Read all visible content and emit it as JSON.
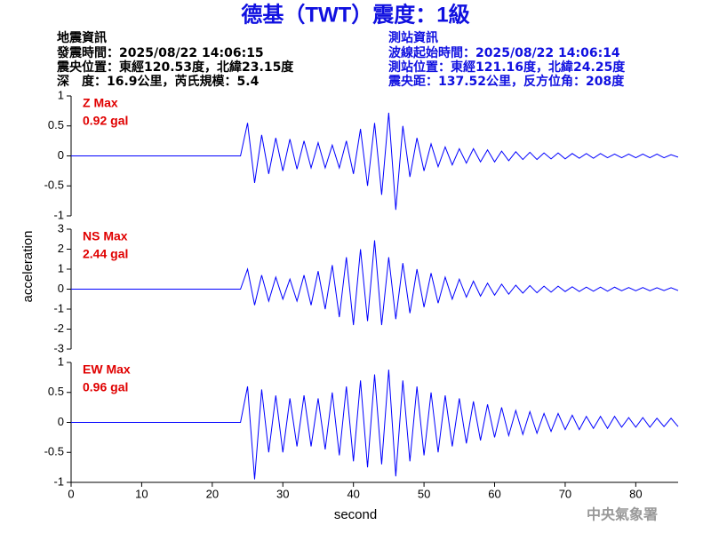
{
  "header": {
    "title": "德基（TWT）震度：1級",
    "left_info": [
      "地震資訊",
      "發震時間：2025/08/22 14:06:15",
      "震央位置：東經120.53度，北緯23.15度",
      "深　度：16.9公里，芮氏規模：5.4"
    ],
    "right_info": [
      "測站資訊",
      "波線起始時間：2025/08/22 14:06:14",
      "測站位置：東經121.16度，北緯24.25度",
      "震央距：137.52公里，反方位角：208度"
    ],
    "watermark": "中央氣象署"
  },
  "chart_data": [
    {
      "type": "line",
      "max_label": "Z Max",
      "max_value_label": "0.92 gal",
      "color": "#0000ff",
      "xlim": [
        0,
        86
      ],
      "ylim": [
        -1,
        1
      ],
      "yticks": [
        -1,
        -0.5,
        0,
        0.5,
        1
      ],
      "x": [
        0,
        1,
        2,
        3,
        4,
        5,
        6,
        7,
        8,
        9,
        10,
        11,
        12,
        13,
        14,
        15,
        16,
        17,
        18,
        19,
        20,
        21,
        22,
        23,
        24,
        25,
        26,
        27,
        28,
        29,
        30,
        31,
        32,
        33,
        34,
        35,
        36,
        37,
        38,
        39,
        40,
        41,
        42,
        43,
        44,
        45,
        46,
        47,
        48,
        49,
        50,
        51,
        52,
        53,
        54,
        55,
        56,
        57,
        58,
        59,
        60,
        61,
        62,
        63,
        64,
        65,
        66,
        67,
        68,
        69,
        70,
        71,
        72,
        73,
        74,
        75,
        76,
        77,
        78,
        79,
        80,
        81,
        82,
        83,
        84,
        85,
        86
      ],
      "values": [
        0,
        0,
        0,
        0,
        0,
        0,
        0,
        0,
        0,
        0,
        0,
        0,
        0,
        0,
        0,
        0,
        0,
        0,
        0,
        0,
        0,
        0,
        0,
        0,
        0,
        0.55,
        -0.45,
        0.35,
        -0.3,
        0.3,
        -0.25,
        0.28,
        -0.22,
        0.25,
        -0.2,
        0.22,
        -0.2,
        0.18,
        -0.2,
        0.25,
        -0.3,
        0.45,
        -0.5,
        0.55,
        -0.65,
        0.72,
        -0.9,
        0.5,
        -0.35,
        0.3,
        -0.25,
        0.2,
        -0.18,
        0.15,
        -0.15,
        0.12,
        -0.12,
        0.12,
        -0.1,
        0.1,
        -0.1,
        0.08,
        -0.08,
        0.07,
        -0.06,
        0.06,
        -0.06,
        0.05,
        -0.05,
        0.05,
        -0.05,
        0.04,
        -0.04,
        0.04,
        -0.04,
        0.04,
        -0.03,
        0.03,
        -0.03,
        0.03,
        -0.03,
        0.03,
        -0.03,
        0.03,
        -0.03,
        0.02,
        -0.02
      ]
    },
    {
      "type": "line",
      "max_label": "NS Max",
      "max_value_label": "2.44 gal",
      "color": "#0000ff",
      "ylabel": "acceleration",
      "xlim": [
        0,
        86
      ],
      "ylim": [
        -3,
        3
      ],
      "yticks": [
        -3,
        -2,
        -1,
        0,
        1,
        2,
        3
      ],
      "x": [
        0,
        1,
        2,
        3,
        4,
        5,
        6,
        7,
        8,
        9,
        10,
        11,
        12,
        13,
        14,
        15,
        16,
        17,
        18,
        19,
        20,
        21,
        22,
        23,
        24,
        25,
        26,
        27,
        28,
        29,
        30,
        31,
        32,
        33,
        34,
        35,
        36,
        37,
        38,
        39,
        40,
        41,
        42,
        43,
        44,
        45,
        46,
        47,
        48,
        49,
        50,
        51,
        52,
        53,
        54,
        55,
        56,
        57,
        58,
        59,
        60,
        61,
        62,
        63,
        64,
        65,
        66,
        67,
        68,
        69,
        70,
        71,
        72,
        73,
        74,
        75,
        76,
        77,
        78,
        79,
        80,
        81,
        82,
        83,
        84,
        85,
        86
      ],
      "values": [
        0,
        0,
        0,
        0,
        0,
        0,
        0,
        0,
        0,
        0,
        0,
        0,
        0,
        0,
        0,
        0,
        0,
        0,
        0,
        0,
        0,
        0,
        0,
        0,
        0,
        1.0,
        -0.8,
        0.7,
        -0.6,
        0.6,
        -0.5,
        0.5,
        -0.6,
        0.7,
        -0.8,
        0.9,
        -1.0,
        1.2,
        -1.4,
        1.6,
        -1.8,
        2.0,
        -1.6,
        2.44,
        -1.8,
        1.6,
        -1.5,
        1.3,
        -1.2,
        1.0,
        -0.9,
        0.8,
        -0.7,
        0.6,
        -0.5,
        0.5,
        -0.4,
        0.4,
        -0.35,
        0.3,
        -0.3,
        0.25,
        -0.25,
        0.2,
        -0.2,
        0.18,
        -0.18,
        0.15,
        -0.15,
        0.15,
        -0.12,
        0.12,
        -0.12,
        0.1,
        -0.1,
        0.1,
        -0.1,
        0.1,
        -0.08,
        0.08,
        -0.08,
        0.08,
        -0.08,
        0.07,
        -0.07,
        0.07,
        -0.07
      ]
    },
    {
      "type": "line",
      "max_label": "EW Max",
      "max_value_label": "0.96 gal",
      "color": "#0000ff",
      "xlabel": "second",
      "xlim": [
        0,
        86
      ],
      "ylim": [
        -1,
        1
      ],
      "yticks": [
        -1,
        -0.5,
        0,
        0.5,
        1
      ],
      "xticks": [
        0,
        10,
        20,
        30,
        40,
        50,
        60,
        70,
        80
      ],
      "x": [
        0,
        1,
        2,
        3,
        4,
        5,
        6,
        7,
        8,
        9,
        10,
        11,
        12,
        13,
        14,
        15,
        16,
        17,
        18,
        19,
        20,
        21,
        22,
        23,
        24,
        25,
        26,
        27,
        28,
        29,
        30,
        31,
        32,
        33,
        34,
        35,
        36,
        37,
        38,
        39,
        40,
        41,
        42,
        43,
        44,
        45,
        46,
        47,
        48,
        49,
        50,
        51,
        52,
        53,
        54,
        55,
        56,
        57,
        58,
        59,
        60,
        61,
        62,
        63,
        64,
        65,
        66,
        67,
        68,
        69,
        70,
        71,
        72,
        73,
        74,
        75,
        76,
        77,
        78,
        79,
        80,
        81,
        82,
        83,
        84,
        85,
        86
      ],
      "values": [
        0,
        0,
        0,
        0,
        0,
        0,
        0,
        0,
        0,
        0,
        0,
        0,
        0,
        0,
        0,
        0,
        0,
        0,
        0,
        0,
        0,
        0,
        0,
        0,
        0,
        0.6,
        -0.95,
        0.55,
        -0.5,
        0.45,
        -0.5,
        0.4,
        -0.4,
        0.45,
        -0.4,
        0.4,
        -0.45,
        0.5,
        -0.55,
        0.6,
        -0.65,
        0.7,
        -0.75,
        0.8,
        -0.7,
        0.88,
        -0.9,
        0.7,
        -0.65,
        0.6,
        -0.55,
        0.5,
        -0.5,
        0.45,
        -0.4,
        0.4,
        -0.35,
        0.35,
        -0.3,
        0.3,
        -0.25,
        0.25,
        -0.22,
        0.2,
        -0.2,
        0.18,
        -0.18,
        0.15,
        -0.15,
        0.15,
        -0.12,
        0.12,
        -0.12,
        0.1,
        -0.1,
        0.1,
        -0.1,
        0.1,
        -0.08,
        0.08,
        -0.08,
        0.08,
        -0.08,
        0.07,
        -0.07,
        0.07,
        -0.07
      ]
    }
  ]
}
